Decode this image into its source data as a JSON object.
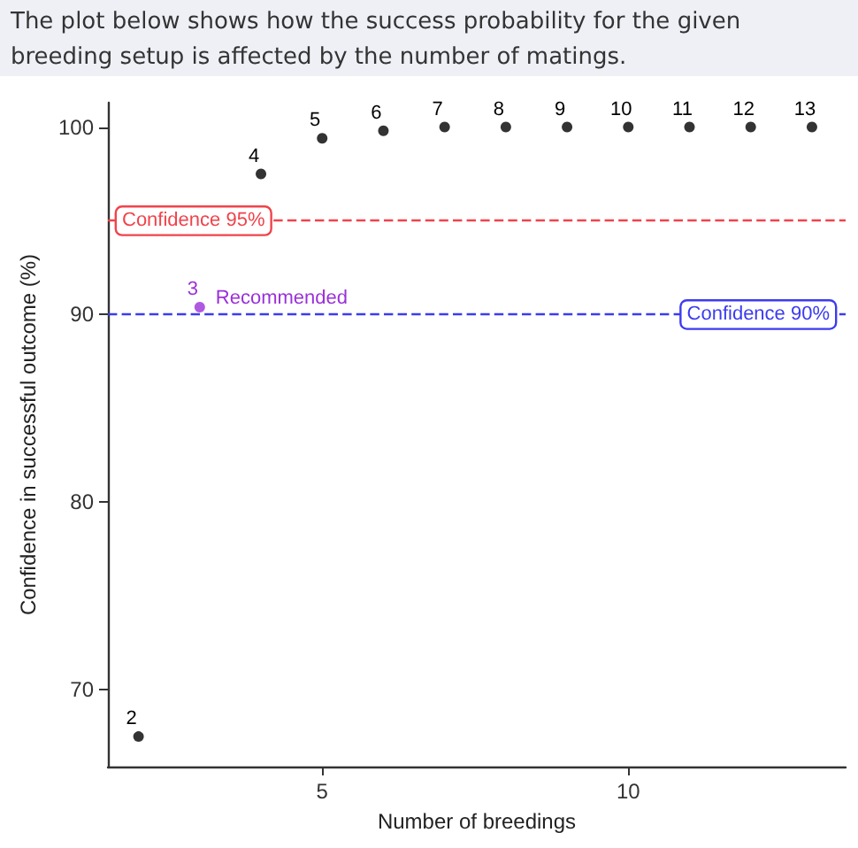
{
  "chart_data": {
    "type": "scatter",
    "title": "The plot below shows how the success probability for the given breeding setup is affected by the number of matings.",
    "xlabel": "Number of breedings",
    "ylabel": "Confidence in successful outcome (%)",
    "x": [
      2,
      3,
      4,
      5,
      6,
      7,
      8,
      9,
      10,
      11,
      12,
      13
    ],
    "values": [
      67.5,
      90.4,
      97.5,
      99.4,
      99.8,
      100,
      100,
      100,
      100,
      100,
      100,
      100
    ],
    "colors": [
      "#000000",
      "#9b30d9",
      "#000000",
      "#000000",
      "#000000",
      "#000000",
      "#000000",
      "#000000",
      "#000000",
      "#000000",
      "#000000",
      "#000000"
    ],
    "annotations": [
      {
        "text": "2",
        "x": 2,
        "y": 67.5
      },
      {
        "text": "3",
        "x": 3,
        "y": 90.4
      },
      {
        "text": "4",
        "x": 4,
        "y": 97.5
      },
      {
        "text": "5",
        "x": 5,
        "y": 99.4
      },
      {
        "text": "6",
        "x": 6,
        "y": 99.8
      },
      {
        "text": "7",
        "x": 7,
        "y": 100
      },
      {
        "text": "8",
        "x": 8,
        "y": 100
      },
      {
        "text": "9",
        "x": 9,
        "y": 100
      },
      {
        "text": "10",
        "x": 10,
        "y": 100
      },
      {
        "text": "11",
        "x": 11,
        "y": 100
      },
      {
        "text": "12",
        "x": 12,
        "y": 100
      },
      {
        "text": "13",
        "x": 13,
        "y": 100
      },
      {
        "text": "Recommended",
        "x": 3,
        "y": 90.4
      }
    ],
    "ref_lines": [
      {
        "axis": "y",
        "value": 95,
        "label": "Confidence 95%",
        "color": "#f0434b",
        "line_style": "dashed"
      },
      {
        "axis": "y",
        "value": 90,
        "label": "Confidence 90%",
        "color": "#3b3bf0",
        "line_style": "dashed"
      }
    ],
    "xlim": [
      1.5,
      13.55
    ],
    "ylim": [
      65.9,
      101.3
    ],
    "xticks": [
      5,
      10
    ],
    "yticks": [
      70,
      80,
      90,
      100
    ],
    "grid": false,
    "marker": "circle"
  }
}
